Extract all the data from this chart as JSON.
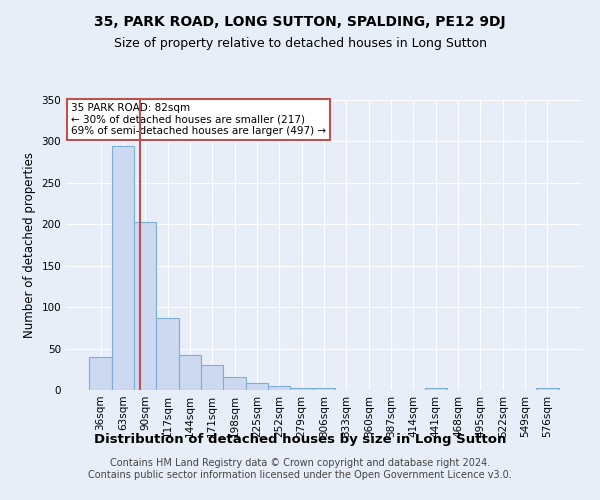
{
  "title": "35, PARK ROAD, LONG SUTTON, SPALDING, PE12 9DJ",
  "subtitle": "Size of property relative to detached houses in Long Sutton",
  "xlabel": "Distribution of detached houses by size in Long Sutton",
  "ylabel": "Number of detached properties",
  "footer_line1": "Contains HM Land Registry data © Crown copyright and database right 2024.",
  "footer_line2": "Contains public sector information licensed under the Open Government Licence v3.0.",
  "categories": [
    "36sqm",
    "63sqm",
    "90sqm",
    "117sqm",
    "144sqm",
    "171sqm",
    "198sqm",
    "225sqm",
    "252sqm",
    "279sqm",
    "306sqm",
    "333sqm",
    "360sqm",
    "387sqm",
    "414sqm",
    "441sqm",
    "468sqm",
    "495sqm",
    "522sqm",
    "549sqm",
    "576sqm"
  ],
  "values": [
    40,
    295,
    203,
    87,
    42,
    30,
    16,
    8,
    5,
    2,
    2,
    0,
    0,
    0,
    0,
    3,
    0,
    0,
    0,
    0,
    2
  ],
  "bar_color": "#ccd9f0",
  "bar_edgecolor": "#7bafd4",
  "vline_x": 1.75,
  "vline_color": "#c0504d",
  "annotation_title": "35 PARK ROAD: 82sqm",
  "annotation_line1": "← 30% of detached houses are smaller (217)",
  "annotation_line2": "69% of semi-detached houses are larger (497) →",
  "annotation_box_color": "#ffffff",
  "annotation_box_edgecolor": "#c0504d",
  "ylim": [
    0,
    350
  ],
  "yticks": [
    0,
    50,
    100,
    150,
    200,
    250,
    300,
    350
  ],
  "bg_color": "#e8eef8",
  "plot_bg_color": "#e8eef8",
  "grid_color": "#ffffff",
  "title_fontsize": 10,
  "subtitle_fontsize": 9,
  "xlabel_fontsize": 9.5,
  "ylabel_fontsize": 8.5,
  "tick_fontsize": 7.5,
  "annotation_fontsize": 7.5,
  "footer_fontsize": 7
}
